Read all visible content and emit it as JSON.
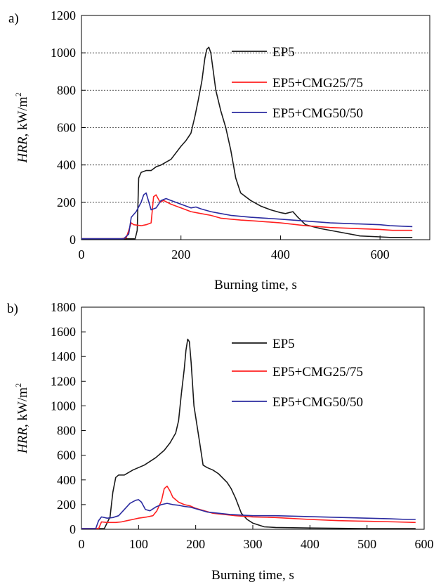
{
  "chart_data": [
    {
      "panel_label": "a)",
      "type": "line",
      "xlabel": "Burning time, s",
      "ylabel_italic": "HRR",
      "ylabel_rest": ", kW/m",
      "ylabel_sup": "2",
      "xlim": [
        0,
        700
      ],
      "ylim": [
        0,
        1200
      ],
      "xticks": [
        0,
        200,
        400,
        600
      ],
      "yticks": [
        0,
        200,
        400,
        600,
        800,
        1000,
        1200
      ],
      "grid": "horizontal dotted",
      "legend_position": "top-right",
      "series": [
        {
          "name": "EP5",
          "color": "#1a1a1a",
          "points": [
            [
              0,
              5
            ],
            [
              90,
              5
            ],
            [
              108,
              5
            ],
            [
              112,
              50
            ],
            [
              115,
              330
            ],
            [
              120,
              360
            ],
            [
              130,
              370
            ],
            [
              140,
              370
            ],
            [
              150,
              390
            ],
            [
              160,
              400
            ],
            [
              180,
              430
            ],
            [
              200,
              500
            ],
            [
              210,
              530
            ],
            [
              220,
              570
            ],
            [
              228,
              660
            ],
            [
              235,
              750
            ],
            [
              242,
              850
            ],
            [
              248,
              970
            ],
            [
              252,
              1020
            ],
            [
              256,
              1030
            ],
            [
              260,
              1000
            ],
            [
              265,
              900
            ],
            [
              270,
              800
            ],
            [
              280,
              690
            ],
            [
              290,
              600
            ],
            [
              300,
              480
            ],
            [
              310,
              330
            ],
            [
              320,
              250
            ],
            [
              340,
              210
            ],
            [
              360,
              180
            ],
            [
              380,
              160
            ],
            [
              400,
              145
            ],
            [
              410,
              140
            ],
            [
              425,
              150
            ],
            [
              435,
              120
            ],
            [
              450,
              80
            ],
            [
              480,
              60
            ],
            [
              520,
              40
            ],
            [
              560,
              20
            ],
            [
              600,
              15
            ],
            [
              620,
              12
            ],
            [
              665,
              12
            ]
          ]
        },
        {
          "name": "EP5+CMG25/75",
          "color": "#ff2020",
          "points": [
            [
              0,
              5
            ],
            [
              80,
              5
            ],
            [
              90,
              10
            ],
            [
              100,
              90
            ],
            [
              105,
              80
            ],
            [
              120,
              75
            ],
            [
              130,
              80
            ],
            [
              140,
              90
            ],
            [
              145,
              230
            ],
            [
              150,
              240
            ],
            [
              158,
              200
            ],
            [
              165,
              210
            ],
            [
              180,
              190
            ],
            [
              200,
              170
            ],
            [
              220,
              150
            ],
            [
              240,
              140
            ],
            [
              260,
              130
            ],
            [
              280,
              115
            ],
            [
              300,
              110
            ],
            [
              320,
              105
            ],
            [
              350,
              100
            ],
            [
              400,
              90
            ],
            [
              450,
              75
            ],
            [
              500,
              65
            ],
            [
              550,
              60
            ],
            [
              600,
              55
            ],
            [
              625,
              50
            ],
            [
              665,
              50
            ]
          ]
        },
        {
          "name": "EP5+CMG50/50",
          "color": "#2b2ba0",
          "points": [
            [
              0,
              5
            ],
            [
              85,
              5
            ],
            [
              95,
              30
            ],
            [
              100,
              120
            ],
            [
              110,
              150
            ],
            [
              120,
              200
            ],
            [
              125,
              240
            ],
            [
              130,
              250
            ],
            [
              140,
              160
            ],
            [
              150,
              170
            ],
            [
              160,
              210
            ],
            [
              170,
              220
            ],
            [
              180,
              210
            ],
            [
              200,
              190
            ],
            [
              220,
              170
            ],
            [
              230,
              175
            ],
            [
              240,
              165
            ],
            [
              260,
              150
            ],
            [
              280,
              140
            ],
            [
              300,
              130
            ],
            [
              340,
              120
            ],
            [
              400,
              110
            ],
            [
              450,
              100
            ],
            [
              500,
              90
            ],
            [
              550,
              85
            ],
            [
              600,
              80
            ],
            [
              620,
              75
            ],
            [
              665,
              70
            ]
          ]
        }
      ]
    },
    {
      "panel_label": "b)",
      "type": "line",
      "xlabel": "Burning time, s",
      "ylabel_italic": "HRR",
      "ylabel_rest": ", kW/m",
      "ylabel_sup": "2",
      "xlim": [
        0,
        600
      ],
      "ylim": [
        0,
        1800
      ],
      "xticks": [
        0,
        100,
        200,
        300,
        400,
        500,
        600
      ],
      "yticks": [
        0,
        200,
        400,
        600,
        800,
        1000,
        1200,
        1400,
        1600,
        1800
      ],
      "grid": "none",
      "legend_position": "top-right",
      "series": [
        {
          "name": "EP5",
          "color": "#1a1a1a",
          "points": [
            [
              0,
              5
            ],
            [
              40,
              5
            ],
            [
              50,
              100
            ],
            [
              55,
              300
            ],
            [
              60,
              420
            ],
            [
              65,
              440
            ],
            [
              75,
              440
            ],
            [
              90,
              480
            ],
            [
              110,
              520
            ],
            [
              130,
              580
            ],
            [
              145,
              640
            ],
            [
              155,
              700
            ],
            [
              165,
              780
            ],
            [
              170,
              880
            ],
            [
              175,
              1100
            ],
            [
              180,
              1300
            ],
            [
              183,
              1450
            ],
            [
              186,
              1540
            ],
            [
              189,
              1520
            ],
            [
              192,
              1350
            ],
            [
              197,
              1000
            ],
            [
              202,
              850
            ],
            [
              207,
              700
            ],
            [
              213,
              520
            ],
            [
              220,
              500
            ],
            [
              230,
              480
            ],
            [
              240,
              450
            ],
            [
              255,
              380
            ],
            [
              262,
              330
            ],
            [
              270,
              250
            ],
            [
              280,
              130
            ],
            [
              290,
              80
            ],
            [
              300,
              50
            ],
            [
              320,
              20
            ],
            [
              340,
              15
            ],
            [
              400,
              10
            ],
            [
              500,
              5
            ],
            [
              585,
              5
            ]
          ]
        },
        {
          "name": "EP5+CMG25/75",
          "color": "#ff2020",
          "points": [
            [
              0,
              5
            ],
            [
              30,
              5
            ],
            [
              35,
              60
            ],
            [
              45,
              55
            ],
            [
              60,
              55
            ],
            [
              70,
              60
            ],
            [
              80,
              70
            ],
            [
              90,
              80
            ],
            [
              100,
              90
            ],
            [
              115,
              100
            ],
            [
              125,
              110
            ],
            [
              132,
              150
            ],
            [
              140,
              230
            ],
            [
              145,
              330
            ],
            [
              150,
              350
            ],
            [
              155,
              310
            ],
            [
              160,
              260
            ],
            [
              170,
              220
            ],
            [
              180,
              200
            ],
            [
              190,
              190
            ],
            [
              200,
              170
            ],
            [
              215,
              150
            ],
            [
              230,
              130
            ],
            [
              250,
              120
            ],
            [
              270,
              110
            ],
            [
              300,
              100
            ],
            [
              340,
              95
            ],
            [
              400,
              80
            ],
            [
              450,
              70
            ],
            [
              500,
              65
            ],
            [
              550,
              60
            ],
            [
              585,
              55
            ]
          ]
        },
        {
          "name": "EP5+CMG50/50",
          "color": "#2b2ba0",
          "points": [
            [
              0,
              5
            ],
            [
              25,
              5
            ],
            [
              30,
              70
            ],
            [
              35,
              100
            ],
            [
              45,
              90
            ],
            [
              55,
              95
            ],
            [
              65,
              110
            ],
            [
              75,
              160
            ],
            [
              85,
              210
            ],
            [
              95,
              235
            ],
            [
              100,
              240
            ],
            [
              105,
              220
            ],
            [
              112,
              160
            ],
            [
              120,
              150
            ],
            [
              130,
              180
            ],
            [
              140,
              200
            ],
            [
              150,
              210
            ],
            [
              160,
              200
            ],
            [
              170,
              195
            ],
            [
              180,
              185
            ],
            [
              190,
              180
            ],
            [
              205,
              160
            ],
            [
              220,
              140
            ],
            [
              240,
              130
            ],
            [
              260,
              120
            ],
            [
              280,
              115
            ],
            [
              300,
              110
            ],
            [
              340,
              110
            ],
            [
              380,
              105
            ],
            [
              420,
              100
            ],
            [
              460,
              95
            ],
            [
              500,
              90
            ],
            [
              540,
              85
            ],
            [
              570,
              80
            ],
            [
              585,
              80
            ]
          ]
        }
      ]
    }
  ]
}
